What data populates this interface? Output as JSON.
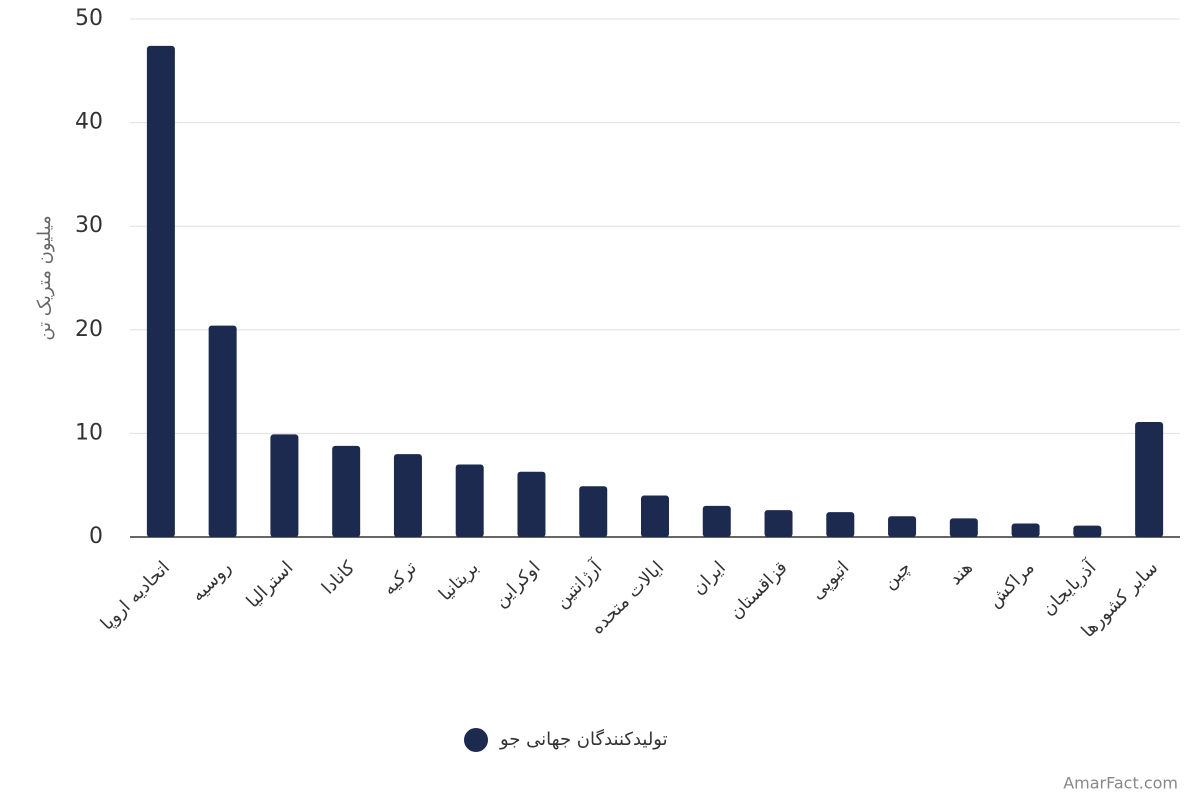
{
  "chart_data": {
    "type": "bar",
    "y_label": "میلیون متریک تن",
    "categories": [
      "اتحادیه اروپا",
      "روسیه",
      "استرالیا",
      "کانادا",
      "ترکیه",
      "بریتانیا",
      "اوکراین",
      "آرژانتین",
      "ایالات متحده",
      "ایران",
      "قزاقستان",
      "اتیوپی",
      "چین",
      "هند",
      "مراکش",
      "آذربایجان",
      "سایر کشورها"
    ],
    "series": [
      {
        "name": "تولیدکنندگان جهانی جو",
        "color": "#1c2a4f",
        "values": [
          47.4,
          20.4,
          9.9,
          8.8,
          8.0,
          7.0,
          6.3,
          4.9,
          4.0,
          3.0,
          2.6,
          2.4,
          2.0,
          1.8,
          1.3,
          1.1,
          11.1
        ]
      }
    ],
    "ylim": [
      0,
      50
    ],
    "yticks": [
      0,
      10,
      20,
      30,
      40,
      50
    ],
    "grid": true,
    "watermark": "AmarFact.com"
  }
}
